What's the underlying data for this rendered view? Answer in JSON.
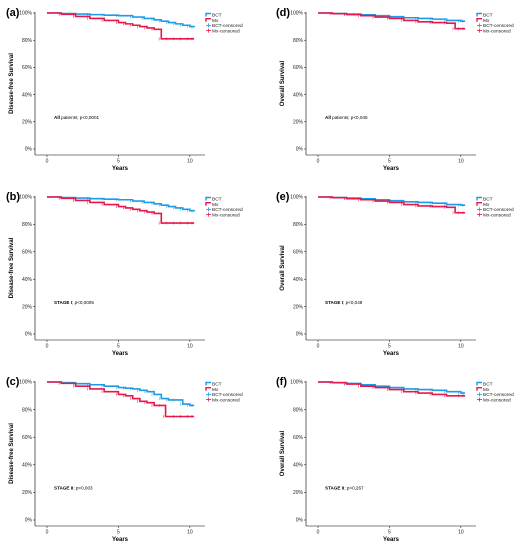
{
  "colors": {
    "bct": "#1e9be6",
    "mx": "#e8174b"
  },
  "chart_data": [
    {
      "panel": "(a)",
      "type": "line",
      "xlabel": "Years",
      "ylabel": "Disease-free Survival",
      "xlim": [
        0,
        10.5
      ],
      "ylim": [
        0,
        100
      ],
      "x_ticks": [
        0,
        5,
        10
      ],
      "y_ticks": [
        "0%",
        "20%",
        "40%",
        "60%",
        "80%",
        "100%"
      ],
      "annotation": {
        "bold": "All",
        "rest": " patients; p<0,0001"
      },
      "legend": [
        "BCT",
        "Mx",
        "BCT-censored",
        "Mx-censored"
      ],
      "series": [
        {
          "name": "BCT",
          "x": [
            0,
            1,
            2,
            3,
            4,
            5,
            6,
            6.8,
            7.5,
            8,
            8.5,
            9,
            9.5,
            10,
            10.3
          ],
          "y": [
            100,
            99.6,
            99.2,
            98.8,
            98.4,
            98,
            97,
            96,
            95,
            94,
            93,
            92,
            91,
            90,
            89.5
          ]
        },
        {
          "name": "Mx",
          "x": [
            0,
            1,
            2,
            3,
            4,
            5,
            5.5,
            6,
            6.5,
            7,
            7.5,
            8,
            8.5,
            9,
            9.5,
            10,
            10.3
          ],
          "y": [
            100,
            99,
            97.5,
            96,
            94.5,
            93,
            92,
            91,
            90,
            89,
            88,
            81,
            81,
            81,
            81,
            81,
            81
          ]
        }
      ]
    },
    {
      "panel": "(b)",
      "type": "line",
      "xlabel": "Years",
      "ylabel": "Disease-free Survival",
      "xlim": [
        0,
        10.5
      ],
      "ylim": [
        0,
        100
      ],
      "x_ticks": [
        0,
        5,
        10
      ],
      "y_ticks": [
        "0%",
        "20%",
        "40%",
        "60%",
        "80%",
        "100%"
      ],
      "annotation": {
        "bold": "STAGE I",
        "rest": "; p<0,0005"
      },
      "legend": [
        "BCT",
        "Mx",
        "BCT-censored",
        "Mx-censored"
      ],
      "series": [
        {
          "name": "BCT",
          "x": [
            0,
            1,
            2,
            3,
            4,
            5,
            6,
            6.8,
            7.5,
            8,
            8.5,
            9,
            9.5,
            10,
            10.3
          ],
          "y": [
            100,
            99.6,
            99.2,
            98.8,
            98.4,
            98,
            97,
            96,
            95,
            94,
            93,
            92,
            91,
            90,
            89.5
          ]
        },
        {
          "name": "Mx",
          "x": [
            0,
            1,
            2,
            3,
            4,
            5,
            5.5,
            6,
            6.5,
            7,
            7.5,
            8,
            8.5,
            9,
            9.5,
            10,
            10.3
          ],
          "y": [
            100,
            99,
            97.5,
            96,
            94.5,
            93,
            92,
            91,
            90,
            89,
            88,
            81,
            81,
            81,
            81,
            81,
            81
          ]
        }
      ]
    },
    {
      "panel": "(c)",
      "type": "line",
      "xlabel": "Years",
      "ylabel": "Disease-free Survival",
      "xlim": [
        0,
        10.5
      ],
      "ylim": [
        0,
        100
      ],
      "x_ticks": [
        0,
        5,
        10
      ],
      "y_ticks": [
        "0%",
        "20%",
        "40%",
        "60%",
        "80%",
        "100%"
      ],
      "annotation": {
        "bold": "STAGE II",
        "rest": "; p<0,003"
      },
      "legend": [
        "BCT",
        "Mx",
        "BCT-censored",
        "Mx-censored"
      ],
      "series": [
        {
          "name": "BCT",
          "x": [
            0,
            1,
            2,
            3,
            4,
            5,
            5.5,
            6,
            6.5,
            7,
            7.5,
            8,
            8.5,
            9,
            9.5,
            10,
            10.3
          ],
          "y": [
            100,
            99.5,
            98.8,
            98,
            97,
            96,
            95.5,
            95,
            94,
            93,
            91,
            88,
            87,
            87,
            84,
            83,
            83
          ]
        },
        {
          "name": "Mx",
          "x": [
            0,
            1,
            2,
            3,
            4,
            5,
            5.5,
            6,
            6.5,
            7,
            7.5,
            8,
            8.3,
            9,
            9.5,
            10,
            10.3
          ],
          "y": [
            100,
            99,
            97,
            95,
            93,
            91,
            90,
            88,
            86,
            85,
            83,
            83,
            75,
            75,
            75,
            75,
            75
          ]
        }
      ]
    },
    {
      "panel": "(d)",
      "type": "line",
      "xlabel": "Years",
      "ylabel": "Overall Survival",
      "xlim": [
        0,
        10.5
      ],
      "ylim": [
        0,
        100
      ],
      "x_ticks": [
        0,
        5,
        10
      ],
      "y_ticks": [
        "0%",
        "20%",
        "40%",
        "60%",
        "80%",
        "100%"
      ],
      "annotation": {
        "bold": "All",
        "rest": " patients; p<0,045"
      },
      "legend": [
        "BCT",
        "Mx",
        "BCT-censored",
        "Mx-censored"
      ],
      "series": [
        {
          "name": "BCT",
          "x": [
            0,
            1,
            2,
            3,
            4,
            5,
            6,
            7,
            8,
            9,
            10,
            10.3
          ],
          "y": [
            100,
            99.6,
            99.2,
            98.7,
            98,
            97.3,
            96.5,
            96,
            95.5,
            94.5,
            94,
            94
          ]
        },
        {
          "name": "Mx",
          "x": [
            0,
            1,
            2,
            3,
            4,
            5,
            6,
            7,
            8,
            9,
            9.6,
            10,
            10.3
          ],
          "y": [
            100,
            99.5,
            98.8,
            98,
            97,
            96,
            94.5,
            93.5,
            93,
            92.5,
            88.5,
            88.5,
            88.5
          ]
        }
      ]
    },
    {
      "panel": "(e)",
      "type": "line",
      "xlabel": "Years",
      "ylabel": "Overall Survival",
      "xlim": [
        0,
        10.5
      ],
      "ylim": [
        0,
        100
      ],
      "x_ticks": [
        0,
        5,
        10
      ],
      "y_ticks": [
        "0%",
        "20%",
        "40%",
        "60%",
        "80%",
        "100%"
      ],
      "annotation": {
        "bold": "STAGE I",
        "rest": "; p<0,048"
      },
      "legend": [
        "BCT",
        "Mx",
        "BCT-censored",
        "Mx-censored"
      ],
      "series": [
        {
          "name": "BCT",
          "x": [
            0,
            1,
            2,
            3,
            4,
            5,
            6,
            7,
            8,
            9,
            10,
            10.3
          ],
          "y": [
            100,
            99.6,
            99.2,
            98.7,
            98,
            97.3,
            96.5,
            96,
            95.5,
            94.5,
            94,
            94
          ]
        },
        {
          "name": "Mx",
          "x": [
            0,
            1,
            2,
            3,
            4,
            5,
            6,
            7,
            8,
            9,
            9.6,
            10,
            10.3
          ],
          "y": [
            100,
            99.5,
            98.8,
            98,
            97,
            96,
            94.5,
            93.5,
            93,
            92.5,
            88.5,
            88.5,
            88.5
          ]
        }
      ]
    },
    {
      "panel": "(f)",
      "type": "line",
      "xlabel": "Years",
      "ylabel": "Overall Survival",
      "xlim": [
        0,
        10.5
      ],
      "ylim": [
        0,
        100
      ],
      "x_ticks": [
        0,
        5,
        10
      ],
      "y_ticks": [
        "0%",
        "20%",
        "40%",
        "60%",
        "80%",
        "100%"
      ],
      "annotation": {
        "bold": "STAGE II",
        "rest": "; p<0,267"
      },
      "legend": [
        "BCT",
        "Mx",
        "BCT-censored",
        "Mx-censored"
      ],
      "series": [
        {
          "name": "BCT",
          "x": [
            0,
            1,
            2,
            3,
            4,
            5,
            6,
            7,
            8,
            9,
            10,
            10.3
          ],
          "y": [
            100,
            99.5,
            99,
            98,
            97,
            96,
            95,
            94.5,
            94,
            93,
            92,
            92
          ]
        },
        {
          "name": "Mx",
          "x": [
            0,
            1,
            2,
            3,
            4,
            5,
            6,
            7,
            8,
            9,
            10,
            10.3
          ],
          "y": [
            100,
            99.5,
            98.5,
            97,
            96,
            94.5,
            93,
            92,
            91,
            90,
            90,
            90
          ]
        }
      ]
    }
  ]
}
